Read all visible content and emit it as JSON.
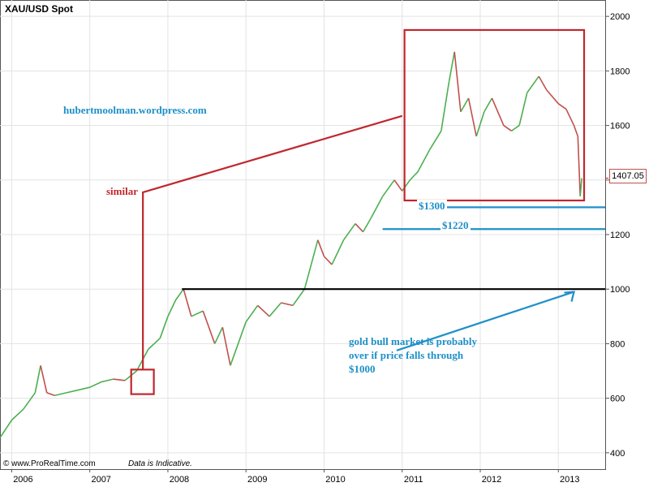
{
  "chart_data": {
    "type": "line",
    "title": "XAU/USD Spot",
    "xlabel": "",
    "ylabel": "",
    "x_ticks": [
      "2006",
      "2007",
      "2008",
      "2009",
      "2010",
      "2011",
      "2012",
      "2013"
    ],
    "y_ticks": [
      400,
      600,
      800,
      1000,
      1200,
      1400,
      1600,
      1800,
      2000
    ],
    "ylim": [
      340,
      2060
    ],
    "xlim": [
      2005.85,
      2013.6
    ],
    "grid": true,
    "last_price": "1407.05",
    "series": [
      {
        "color": "#c0504d",
        "x": [
          2005.85,
          2006.0,
          2006.15,
          2006.3,
          2006.37,
          2006.45,
          2006.55,
          2006.7,
          2006.85,
          2007.0,
          2007.15,
          2007.3,
          2007.45,
          2007.6,
          2007.75,
          2007.9,
          2008.0,
          2008.1,
          2008.2,
          2008.3,
          2008.45,
          2008.6,
          2008.7,
          2008.8,
          2008.9,
          2009.0,
          2009.15,
          2009.3,
          2009.45,
          2009.6,
          2009.75,
          2009.92,
          2010.0,
          2010.1,
          2010.25,
          2010.4,
          2010.5,
          2010.6,
          2010.75,
          2010.9,
          2011.0,
          2011.1,
          2011.2,
          2011.35,
          2011.5,
          2011.6,
          2011.67,
          2011.75,
          2011.85,
          2011.95,
          2012.05,
          2012.15,
          2012.3,
          2012.4,
          2012.5,
          2012.6,
          2012.75,
          2012.85,
          2013.0,
          2013.1,
          2013.2,
          2013.25,
          2013.28,
          2013.3
        ],
        "y": [
          455,
          520,
          560,
          620,
          720,
          620,
          610,
          620,
          630,
          640,
          660,
          670,
          665,
          700,
          780,
          820,
          900,
          960,
          1000,
          900,
          920,
          800,
          860,
          720,
          800,
          880,
          940,
          900,
          950,
          940,
          1000,
          1180,
          1120,
          1090,
          1180,
          1240,
          1210,
          1260,
          1340,
          1400,
          1360,
          1400,
          1430,
          1510,
          1580,
          1760,
          1870,
          1650,
          1700,
          1560,
          1650,
          1700,
          1600,
          1580,
          1600,
          1720,
          1780,
          1730,
          1680,
          1660,
          1600,
          1560,
          1340,
          1407
        ]
      }
    ],
    "annotations": {
      "blog": "hubertmoolman.wordpress.com",
      "similar": "similar",
      "level_1300": "$1300",
      "level_1220": "$1220",
      "level_1000_note": "gold bull market is probably over if price falls through $1000"
    }
  },
  "footer": {
    "source": "©  www.ProRealTime.com",
    "disclaimer": "Data is Indicative."
  },
  "colors": {
    "price_up": "#4caf50",
    "price_down": "#c0504d",
    "annotation_red": "#c0272d",
    "annotation_blue": "#1e90c8",
    "support_black": "#000000"
  }
}
